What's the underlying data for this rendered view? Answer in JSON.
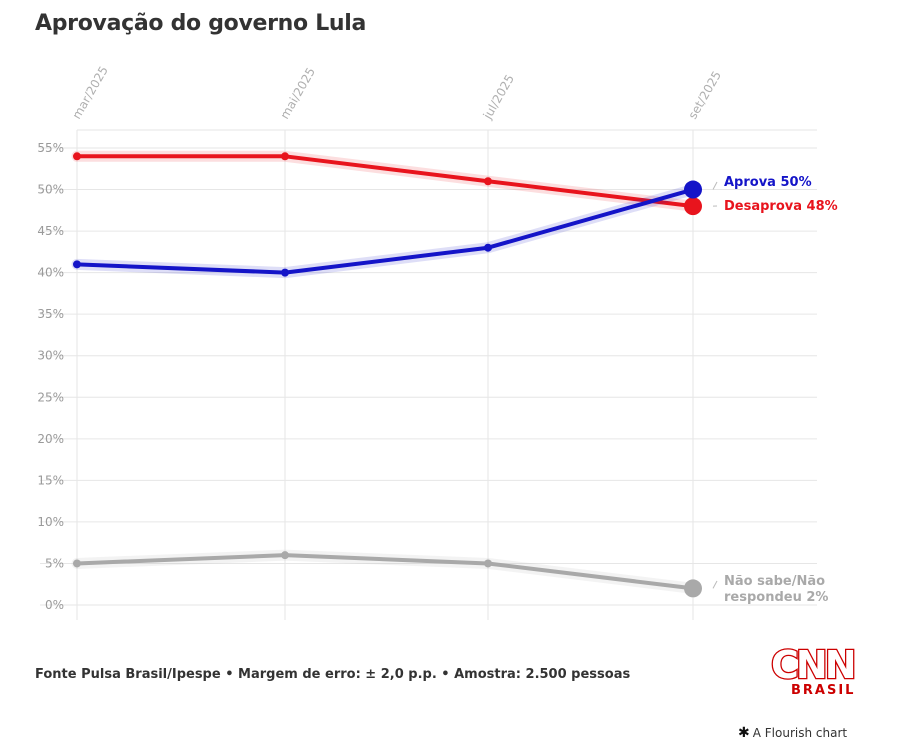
{
  "title": "Aprovação do governo Lula",
  "source": "Fonte Pulsa Brasil/Ipespe • Margem de erro: ± 2,0 p.p. • Amostra: 2.500 pessoas",
  "logo": {
    "line1": "CNN",
    "line2": "BRASIL"
  },
  "credit": {
    "icon": "flourish-star-icon",
    "text": "A Flourish chart"
  },
  "chart_data": {
    "type": "line",
    "title": "Aprovação do governo Lula",
    "x": [
      "mar/2025",
      "mai/2025",
      "jul/2025",
      "set/2025"
    ],
    "x_tick_labels": [
      "mar/2025",
      "mai/2025",
      "jul/2025",
      "set/2025"
    ],
    "y_tick_labels": [
      "0%",
      "5%",
      "10%",
      "15%",
      "20%",
      "25%",
      "30%",
      "35%",
      "40%",
      "45%",
      "50%",
      "55%"
    ],
    "ylim": [
      0,
      55
    ],
    "grid": true,
    "series": [
      {
        "name": "Desaprova",
        "label": "Desaprova 48%",
        "values": [
          54,
          54,
          51,
          48
        ],
        "color": "#e8141d"
      },
      {
        "name": "Aprova",
        "label": "Aprova 50%",
        "values": [
          41,
          40,
          43,
          50
        ],
        "color": "#1414c8"
      },
      {
        "name": "Não sabe/Não respondeu",
        "label_lines": [
          "Não sabe/Não",
          "respondeu 2%"
        ],
        "values": [
          5,
          6,
          5,
          2
        ],
        "color": "#a9a9a9"
      }
    ]
  }
}
